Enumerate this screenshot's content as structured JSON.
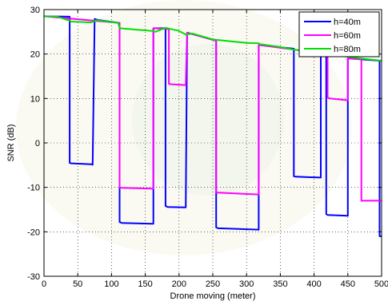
{
  "chart_data": {
    "type": "line",
    "title": "",
    "xlabel": "Drone moving (meter)",
    "ylabel": "SNR (dB)",
    "xlim": [
      0,
      500
    ],
    "ylim": [
      -30,
      30
    ],
    "xticks": [
      0,
      50,
      100,
      150,
      200,
      250,
      300,
      350,
      400,
      450,
      500
    ],
    "yticks": [
      -30,
      -20,
      -10,
      0,
      10,
      20,
      30
    ],
    "grid": true,
    "legend_position": "top-right",
    "series": [
      {
        "name": "h=40m",
        "color": "#0000ff",
        "x": [
          0,
          38,
          38,
          40,
          42,
          70,
          72,
          75,
          77,
          78,
          78,
          112,
          112,
          115,
          160,
          162,
          162,
          180,
          180,
          183,
          210,
          212,
          212,
          255,
          255,
          258,
          318,
          318,
          320,
          370,
          370,
          373,
          410,
          410,
          415,
          418,
          418,
          420,
          450,
          450,
          452,
          497,
          497,
          500
        ],
        "y": [
          28.5,
          28.4,
          -4.5,
          -4.6,
          -4.6,
          -4.8,
          -4.9,
          27.9,
          27.8,
          27.7,
          27.7,
          27.0,
          -17.8,
          -18.0,
          -18.2,
          -18.2,
          25.8,
          25.8,
          -14.2,
          -14.4,
          -14.5,
          24.8,
          24.8,
          23.0,
          -19.0,
          -19.2,
          -19.5,
          22.0,
          22.0,
          21.2,
          -7.5,
          -7.6,
          -7.8,
          20.2,
          20.0,
          19.8,
          -16.0,
          -16.2,
          -16.4,
          19.0,
          19.0,
          18.5,
          -21.0,
          -21.0
        ]
      },
      {
        "name": "h=60m",
        "color": "#ff00ff",
        "x": [
          0,
          112,
          112,
          115,
          160,
          162,
          162,
          185,
          185,
          188,
          210,
          212,
          212,
          255,
          255,
          258,
          318,
          318,
          320,
          420,
          420,
          423,
          450,
          450,
          470,
          470,
          473,
          500
        ],
        "y": [
          28.5,
          27.0,
          -10.0,
          -10.1,
          -10.3,
          -10.3,
          25.8,
          25.6,
          13.3,
          13.2,
          13.0,
          24.8,
          24.8,
          23.0,
          -11.2,
          -11.2,
          -11.6,
          22.0,
          22.0,
          20.0,
          10.2,
          10.0,
          9.6,
          19.0,
          18.8,
          -13.0,
          -13.0,
          -13.0
        ]
      },
      {
        "name": "h=80m",
        "color": "#00e000",
        "x": [
          0,
          20,
          38,
          40,
          70,
          77,
          78,
          110,
          112,
          160,
          165,
          180,
          200,
          210,
          220,
          250,
          255,
          300,
          318,
          320,
          350,
          370,
          400,
          410,
          420,
          450,
          470,
          480,
          500
        ],
        "y": [
          28.5,
          28.4,
          27.5,
          27.3,
          27.1,
          27.6,
          27.6,
          27.0,
          25.8,
          25.2,
          25.0,
          25.9,
          25.2,
          24.4,
          24.6,
          23.3,
          23.2,
          22.5,
          22.4,
          22.2,
          21.6,
          21.0,
          20.4,
          20.1,
          19.9,
          19.4,
          19.0,
          18.8,
          18.5
        ]
      }
    ]
  }
}
